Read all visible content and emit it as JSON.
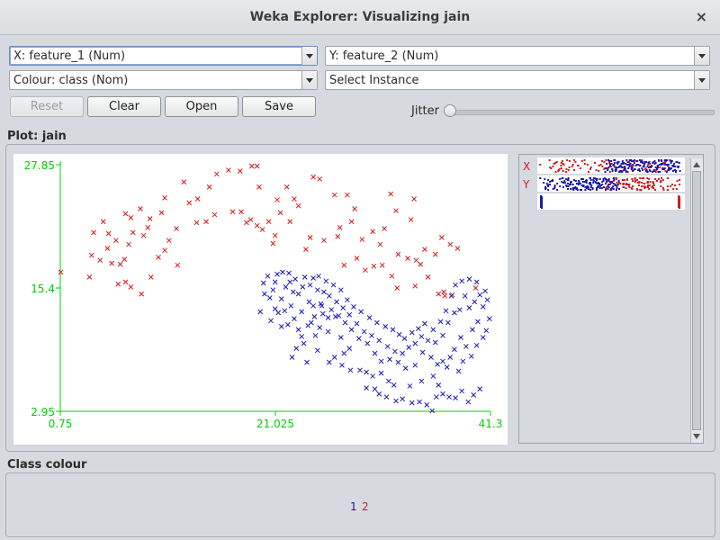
{
  "window": {
    "title": "Weka Explorer: Visualizing jain",
    "close_glyph": "×"
  },
  "controls": {
    "x_axis": "X: feature_1 (Num)",
    "y_axis": "Y: feature_2 (Num)",
    "colour": "Colour: class (Nom)",
    "select_instance": "Select Instance",
    "buttons": {
      "reset": "Reset",
      "clear": "Clear",
      "open": "Open",
      "save": "Save"
    },
    "jitter_label": "Jitter",
    "jitter_value": 0
  },
  "plot": {
    "label": "Plot: jain",
    "y_ticks": [
      "27.85",
      "15.4",
      "2.95"
    ],
    "x_ticks": [
      "0.75",
      "21.025",
      "41.3"
    ],
    "attribute_strips": {
      "x_label": "X",
      "y_label": "Y"
    }
  },
  "class_colour": {
    "label": "Class colour",
    "classes": [
      {
        "name": "1",
        "color": "#1a1ab3"
      },
      {
        "name": "2",
        "color": "#d41a1a"
      }
    ]
  },
  "chart_data": {
    "type": "scatter",
    "xlim": [
      0.75,
      41.3
    ],
    "ylim": [
      2.95,
      27.85
    ],
    "axis_color": "#00d000",
    "marker": "x",
    "series": [
      {
        "name": "2",
        "color": "#d41a1a",
        "points": [
          [
            0.8,
            17.0
          ],
          [
            3.5,
            16.5
          ],
          [
            3.9,
            21.0
          ],
          [
            4.8,
            22.1
          ],
          [
            5.3,
            20.9
          ],
          [
            3.7,
            18.7
          ],
          [
            5.2,
            19.4
          ],
          [
            6.0,
            20.2
          ],
          [
            4.5,
            18.2
          ],
          [
            5.6,
            17.9
          ],
          [
            6.2,
            15.8
          ],
          [
            6.8,
            18.3
          ],
          [
            7.2,
            19.8
          ],
          [
            6.4,
            17.8
          ],
          [
            7.6,
            21.0
          ],
          [
            8.6,
            20.7
          ],
          [
            6.9,
            22.9
          ],
          [
            7.4,
            22.5
          ],
          [
            8.3,
            23.4
          ],
          [
            9.2,
            22.4
          ],
          [
            6.9,
            16.0
          ],
          [
            7.4,
            15.5
          ],
          [
            10.0,
            18.5
          ],
          [
            11.0,
            20.2
          ],
          [
            10.6,
            19.2
          ],
          [
            11.8,
            17.7
          ],
          [
            9.3,
            16.5
          ],
          [
            8.4,
            14.8
          ],
          [
            10.3,
            23.0
          ],
          [
            10.6,
            24.5
          ],
          [
            12.4,
            26.1
          ],
          [
            13.7,
            24.4
          ],
          [
            14.8,
            25.6
          ],
          [
            15.5,
            26.9
          ],
          [
            16.6,
            27.3
          ],
          [
            17.7,
            27.2
          ],
          [
            18.8,
            27.7
          ],
          [
            19.3,
            27.7
          ],
          [
            17.0,
            23.1
          ],
          [
            17.8,
            23.1
          ],
          [
            18.7,
            22.3
          ],
          [
            19.3,
            21.7
          ],
          [
            18.3,
            22.0
          ],
          [
            19.8,
            21.3
          ],
          [
            20.4,
            22.1
          ],
          [
            21.5,
            23.0
          ],
          [
            21.0,
            20.7
          ],
          [
            22.4,
            22.1
          ],
          [
            23.2,
            23.7
          ],
          [
            24.6,
            26.6
          ],
          [
            25.2,
            26.4
          ],
          [
            26.6,
            24.8
          ],
          [
            27.8,
            24.8
          ],
          [
            27.1,
            21.5
          ],
          [
            28.5,
            23.4
          ],
          [
            28.2,
            22.1
          ],
          [
            29.2,
            20.3
          ],
          [
            30.2,
            21.1
          ],
          [
            31.3,
            21.4
          ],
          [
            30.9,
            19.8
          ],
          [
            31.9,
            24.9
          ],
          [
            32.4,
            23.2
          ],
          [
            34.1,
            24.4
          ],
          [
            33.8,
            22.3
          ],
          [
            32.6,
            18.8
          ],
          [
            33.5,
            18.4
          ],
          [
            34.3,
            18.2
          ],
          [
            34.7,
            17.8
          ],
          [
            35.1,
            19.3
          ],
          [
            36.1,
            18.8
          ],
          [
            36.7,
            20.5
          ],
          [
            37.5,
            19.8
          ],
          [
            38.2,
            19.4
          ],
          [
            32.5,
            15.4
          ],
          [
            34.2,
            15.6
          ],
          [
            35.4,
            16.5
          ],
          [
            36.4,
            14.8
          ],
          [
            37.0,
            14.6
          ],
          [
            39.9,
            15.4
          ],
          [
            36.9,
            15.0
          ],
          [
            37.7,
            14.7
          ],
          [
            29.5,
            17.2
          ],
          [
            28.7,
            18.4
          ],
          [
            31.1,
            17.7
          ],
          [
            32.0,
            16.6
          ],
          [
            22.1,
            25.6
          ],
          [
            22.8,
            24.4
          ],
          [
            26.9,
            20.6
          ],
          [
            25.6,
            20.2
          ],
          [
            24.3,
            20.5
          ],
          [
            20.8,
            19.9
          ],
          [
            23.9,
            19.3
          ],
          [
            27.5,
            17.7
          ],
          [
            30.3,
            17.6
          ],
          [
            9.0,
            21.5
          ],
          [
            11.7,
            21.4
          ],
          [
            12.9,
            24.0
          ],
          [
            15.3,
            22.8
          ],
          [
            14.5,
            22.1
          ],
          [
            13.6,
            22.0
          ],
          [
            19.5,
            25.6
          ],
          [
            21.2,
            24.3
          ]
        ]
      },
      {
        "name": "1",
        "color": "#1a1ab3",
        "points": [
          [
            20.3,
            16.6
          ],
          [
            21.0,
            16.0
          ],
          [
            20.8,
            15.2
          ],
          [
            21.6,
            14.3
          ],
          [
            22.0,
            15.5
          ],
          [
            22.4,
            16.0
          ],
          [
            22.7,
            15.0
          ],
          [
            23.2,
            14.8
          ],
          [
            23.8,
            16.5
          ],
          [
            24.6,
            16.4
          ],
          [
            25.0,
            15.2
          ],
          [
            25.6,
            15.0
          ],
          [
            24.2,
            14.0
          ],
          [
            23.5,
            13.0
          ],
          [
            22.8,
            12.3
          ],
          [
            22.2,
            11.7
          ],
          [
            24.6,
            13.6
          ],
          [
            25.4,
            13.6
          ],
          [
            26.0,
            12.4
          ],
          [
            26.7,
            12.5
          ],
          [
            25.2,
            11.4
          ],
          [
            24.8,
            10.6
          ],
          [
            26.0,
            11.0
          ],
          [
            27.2,
            10.4
          ],
          [
            28.0,
            9.3
          ],
          [
            27.5,
            8.8
          ],
          [
            26.6,
            8.4
          ],
          [
            26.1,
            7.9
          ],
          [
            25.0,
            9.1
          ],
          [
            24.0,
            7.9
          ],
          [
            27.3,
            7.6
          ],
          [
            28.1,
            7.1
          ],
          [
            29.0,
            7.1
          ],
          [
            29.6,
            6.9
          ],
          [
            30.2,
            6.5
          ],
          [
            31.0,
            6.8
          ],
          [
            31.7,
            6.0
          ],
          [
            32.2,
            5.6
          ],
          [
            30.4,
            5.2
          ],
          [
            29.6,
            5.3
          ],
          [
            30.8,
            4.7
          ],
          [
            31.5,
            4.4
          ],
          [
            32.4,
            4.0
          ],
          [
            33.0,
            4.2
          ],
          [
            33.9,
            3.8
          ],
          [
            34.6,
            3.9
          ],
          [
            35.3,
            3.6
          ],
          [
            35.8,
            3.0
          ],
          [
            36.2,
            4.4
          ],
          [
            36.8,
            4.7
          ],
          [
            37.4,
            4.4
          ],
          [
            38.0,
            4.3
          ],
          [
            38.6,
            5.0
          ],
          [
            39.2,
            3.9
          ],
          [
            39.7,
            4.6
          ],
          [
            40.3,
            5.2
          ],
          [
            33.7,
            5.5
          ],
          [
            34.8,
            6.0
          ],
          [
            35.9,
            6.5
          ],
          [
            36.4,
            5.6
          ],
          [
            37.2,
            7.4
          ],
          [
            38.3,
            7.0
          ],
          [
            38.7,
            8.0
          ],
          [
            39.5,
            8.5
          ],
          [
            40.0,
            9.6
          ],
          [
            40.6,
            10.4
          ],
          [
            40.9,
            11.1
          ],
          [
            41.2,
            12.3
          ],
          [
            40.6,
            13.5
          ],
          [
            40.1,
            12.0
          ],
          [
            39.6,
            11.2
          ],
          [
            39.0,
            9.5
          ],
          [
            38.5,
            10.4
          ],
          [
            37.9,
            9.2
          ],
          [
            37.5,
            8.4
          ],
          [
            36.8,
            8.0
          ],
          [
            36.3,
            7.7
          ],
          [
            35.7,
            8.4
          ],
          [
            34.9,
            8.9
          ],
          [
            34.2,
            7.6
          ],
          [
            33.3,
            7.3
          ],
          [
            32.6,
            7.9
          ],
          [
            31.8,
            8.2
          ],
          [
            31.0,
            8.0
          ],
          [
            30.4,
            8.8
          ],
          [
            29.7,
            9.8
          ],
          [
            28.9,
            10.3
          ],
          [
            28.2,
            11.2
          ],
          [
            27.6,
            11.9
          ],
          [
            27.0,
            12.6
          ],
          [
            26.3,
            13.2
          ],
          [
            25.5,
            12.8
          ],
          [
            24.4,
            11.9
          ],
          [
            23.5,
            10.5
          ],
          [
            23.0,
            9.3
          ],
          [
            22.6,
            8.4
          ],
          [
            40.8,
            15.1
          ],
          [
            40.3,
            14.7
          ],
          [
            39.8,
            14.0
          ],
          [
            39.3,
            13.4
          ],
          [
            38.9,
            14.6
          ],
          [
            38.4,
            13.2
          ],
          [
            37.9,
            12.9
          ],
          [
            37.3,
            11.9
          ],
          [
            36.8,
            10.6
          ],
          [
            36.1,
            9.9
          ],
          [
            35.4,
            10.1
          ],
          [
            34.8,
            10.5
          ],
          [
            34.2,
            9.8
          ],
          [
            33.6,
            9.4
          ],
          [
            33.0,
            8.8
          ],
          [
            32.3,
            9.0
          ],
          [
            31.6,
            9.5
          ],
          [
            30.8,
            10.1
          ],
          [
            30.1,
            10.6
          ],
          [
            29.4,
            11.0
          ],
          [
            28.7,
            11.8
          ],
          [
            28.0,
            12.7
          ],
          [
            27.4,
            13.4
          ],
          [
            26.8,
            14.0
          ],
          [
            26.1,
            14.6
          ],
          [
            25.3,
            13.8
          ],
          [
            24.7,
            12.5
          ],
          [
            24.1,
            11.6
          ],
          [
            23.7,
            9.8
          ],
          [
            23.2,
            11.2
          ],
          [
            22.5,
            13.6
          ],
          [
            21.9,
            13.1
          ],
          [
            21.3,
            12.9
          ],
          [
            21.6,
            11.5
          ],
          [
            21.0,
            13.3
          ],
          [
            20.5,
            14.4
          ],
          [
            19.9,
            15.9
          ],
          [
            20.0,
            14.8
          ],
          [
            19.6,
            13.0
          ],
          [
            20.6,
            12.1
          ],
          [
            41.0,
            14.2
          ],
          [
            40.0,
            16.0
          ],
          [
            39.3,
            16.3
          ],
          [
            38.6,
            16.1
          ],
          [
            38.0,
            15.7
          ],
          [
            37.6,
            14.6
          ],
          [
            37.1,
            13.1
          ],
          [
            36.6,
            12.0
          ],
          [
            35.9,
            11.2
          ],
          [
            35.1,
            11.8
          ],
          [
            34.5,
            11.3
          ],
          [
            33.9,
            10.9
          ],
          [
            33.2,
            10.3
          ],
          [
            32.7,
            10.7
          ],
          [
            32.1,
            11.2
          ],
          [
            31.4,
            11.5
          ],
          [
            30.6,
            11.9
          ],
          [
            29.9,
            12.4
          ],
          [
            29.1,
            13.0
          ],
          [
            28.4,
            13.5
          ],
          [
            27.8,
            14.2
          ],
          [
            27.2,
            15.2
          ],
          [
            26.5,
            15.7
          ],
          [
            25.8,
            16.1
          ],
          [
            25.1,
            16.6
          ],
          [
            24.3,
            15.7
          ],
          [
            23.6,
            15.5
          ],
          [
            22.9,
            16.3
          ],
          [
            22.3,
            16.9
          ],
          [
            21.7,
            17.0
          ],
          [
            21.2,
            16.8
          ]
        ]
      }
    ]
  }
}
